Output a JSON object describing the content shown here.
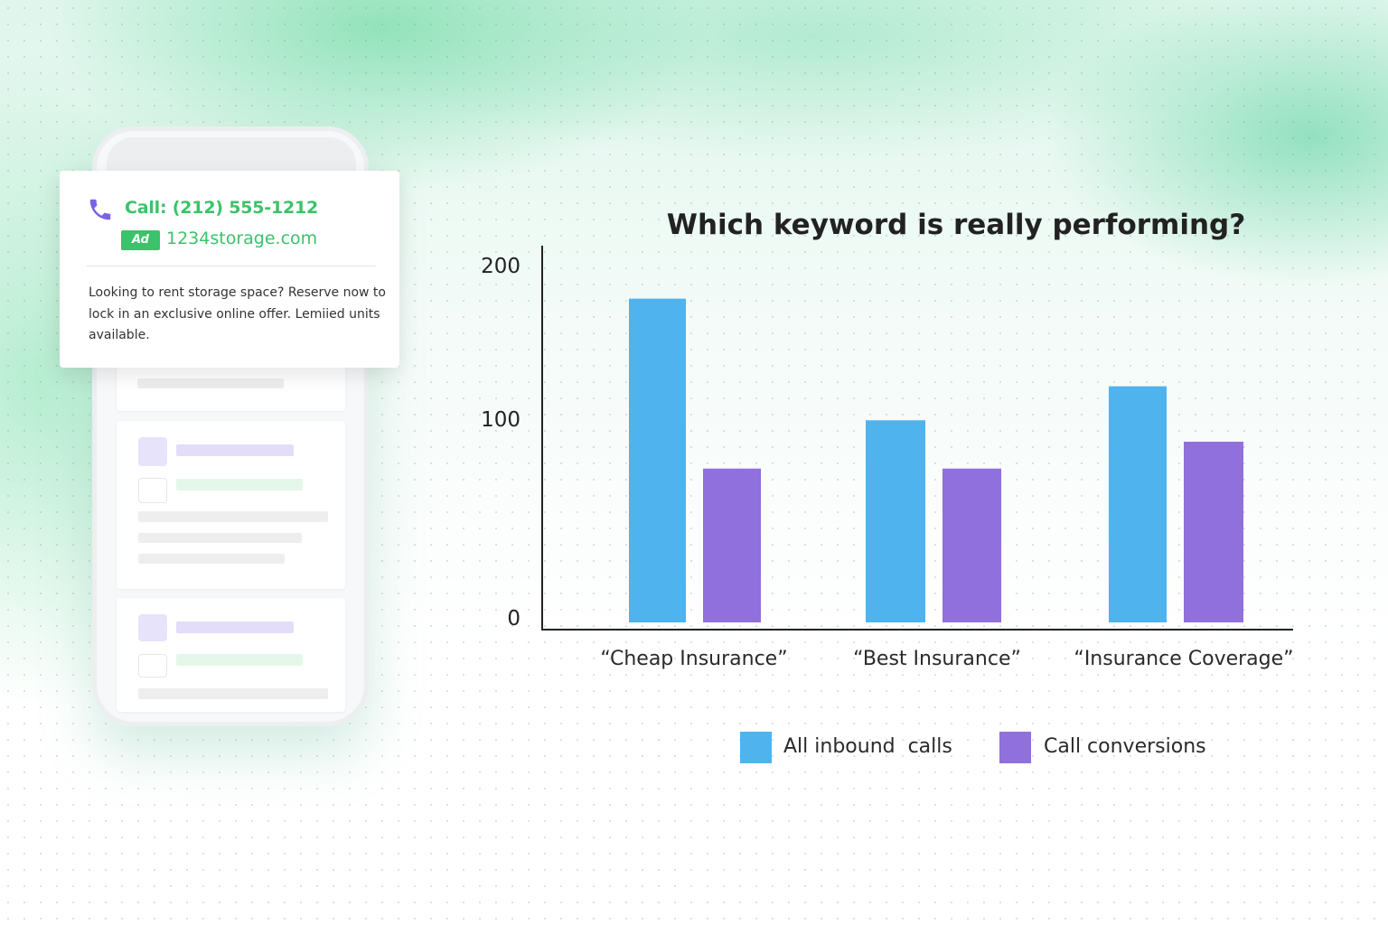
{
  "ad": {
    "call_text": "Call: (212) 555-1212",
    "badge": "Ad",
    "url": "1234storage.com",
    "description": "Looking to rent storage space? Reserve now to lock in an exclusive online offer. Lemiied units available."
  },
  "colors": {
    "all_inbound_calls": "#4fb3ee",
    "call_conversions": "#9070dc",
    "ad_green": "#3cc26a"
  },
  "icons": [
    "phone-icon"
  ],
  "chart_data": {
    "type": "bar",
    "title": "Which keyword is really performing?",
    "xlabel": "",
    "ylabel": "",
    "categories": [
      "“Cheap Insurance”",
      "“Best Insurance”",
      "“Insurance Coverage”"
    ],
    "series": [
      {
        "name": "All inbound  calls",
        "values": [
          181,
          113,
          132
        ]
      },
      {
        "name": "Call conversions",
        "values": [
          86,
          86,
          101
        ]
      }
    ],
    "yticks": [
      "200",
      "100",
      "0"
    ],
    "ylim": [
      0,
      220
    ],
    "grid": false,
    "legend": "bottom"
  }
}
